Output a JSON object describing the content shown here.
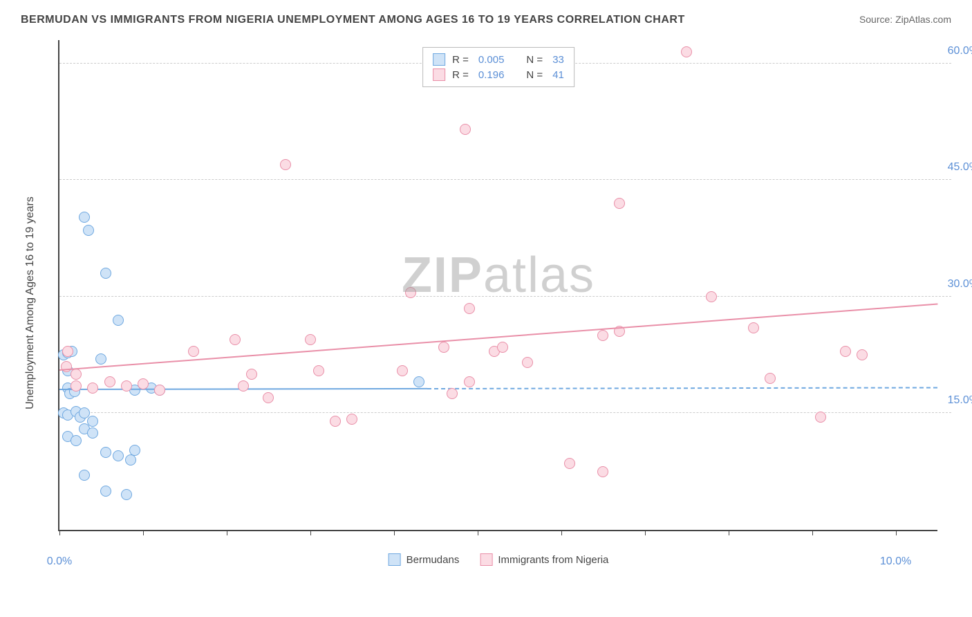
{
  "title": "BERMUDAN VS IMMIGRANTS FROM NIGERIA UNEMPLOYMENT AMONG AGES 16 TO 19 YEARS CORRELATION CHART",
  "source": "Source: ZipAtlas.com",
  "watermark_a": "ZIP",
  "watermark_b": "atlas",
  "yaxis_title": "Unemployment Among Ages 16 to 19 years",
  "chart": {
    "type": "scatter",
    "xlim": [
      0,
      10.5
    ],
    "ylim": [
      0,
      63
    ],
    "xticks": [
      0,
      1,
      2,
      3,
      4,
      5,
      6,
      7,
      8,
      9,
      10
    ],
    "xtick_labels": {
      "0": "0.0%",
      "10": "10.0%"
    },
    "yticks": [
      15,
      30,
      45,
      60
    ],
    "ytick_labels": {
      "15": "15.0%",
      "30": "30.0%",
      "45": "45.0%",
      "60": "60.0%"
    },
    "background_color": "#ffffff",
    "grid_color": "#cccccc",
    "axis_color": "#444444",
    "tick_label_color": "#5b8fd6",
    "marker_radius": 8,
    "marker_stroke_width": 1.5,
    "trend_line_width": 2
  },
  "series": [
    {
      "name": "Bermudans",
      "fill": "#cfe3f7",
      "stroke": "#6fa8e0",
      "R_label": "R =",
      "R": "0.005",
      "N_label": "N =",
      "N": "33",
      "trend": {
        "x1": 0,
        "y1": 18.0,
        "x2": 4.4,
        "y2": 18.1,
        "solid_until_x": 4.4,
        "dashed_to_x": 10.5
      },
      "points": [
        [
          0.05,
          22.5
        ],
        [
          0.1,
          22.8
        ],
        [
          0.15,
          23.0
        ],
        [
          0.1,
          18.2
        ],
        [
          0.12,
          17.5
        ],
        [
          0.18,
          17.8
        ],
        [
          0.1,
          20.5
        ],
        [
          0.3,
          40.2
        ],
        [
          0.35,
          38.5
        ],
        [
          0.55,
          33.0
        ],
        [
          0.7,
          27.0
        ],
        [
          0.05,
          15.0
        ],
        [
          0.1,
          14.8
        ],
        [
          0.2,
          15.2
        ],
        [
          0.25,
          14.5
        ],
        [
          0.3,
          15.0
        ],
        [
          0.4,
          14.0
        ],
        [
          0.1,
          12.0
        ],
        [
          0.2,
          11.5
        ],
        [
          0.3,
          13.0
        ],
        [
          0.4,
          12.5
        ],
        [
          0.55,
          10.0
        ],
        [
          0.7,
          9.5
        ],
        [
          0.85,
          9.0
        ],
        [
          0.9,
          10.2
        ],
        [
          0.3,
          7.0
        ],
        [
          0.55,
          5.0
        ],
        [
          0.8,
          4.5
        ],
        [
          0.9,
          18.0
        ],
        [
          1.1,
          18.2
        ],
        [
          1.2,
          18.0
        ],
        [
          4.3,
          19.0
        ],
        [
          0.5,
          22.0
        ]
      ]
    },
    {
      "name": "Immigrants from Nigeria",
      "fill": "#fbdce4",
      "stroke": "#e98fa8",
      "R_label": "R =",
      "R": "0.196",
      "N_label": "N =",
      "N": "41",
      "trend": {
        "x1": 0,
        "y1": 20.5,
        "x2": 10.5,
        "y2": 29.0
      },
      "points": [
        [
          0.08,
          21.0
        ],
        [
          0.2,
          20.0
        ],
        [
          0.2,
          18.5
        ],
        [
          0.4,
          18.2
        ],
        [
          0.6,
          19.0
        ],
        [
          0.8,
          18.5
        ],
        [
          1.0,
          18.8
        ],
        [
          1.2,
          18.0
        ],
        [
          1.6,
          23.0
        ],
        [
          2.1,
          24.5
        ],
        [
          2.2,
          18.5
        ],
        [
          2.3,
          20.0
        ],
        [
          2.5,
          17.0
        ],
        [
          2.7,
          47.0
        ],
        [
          3.0,
          24.5
        ],
        [
          3.1,
          20.5
        ],
        [
          3.3,
          14.0
        ],
        [
          3.5,
          14.2
        ],
        [
          4.1,
          20.5
        ],
        [
          4.2,
          30.5
        ],
        [
          4.7,
          17.5
        ],
        [
          4.85,
          51.5
        ],
        [
          4.9,
          28.5
        ],
        [
          4.9,
          19.0
        ],
        [
          5.2,
          23.0
        ],
        [
          5.3,
          23.5
        ],
        [
          5.6,
          21.5
        ],
        [
          6.1,
          8.5
        ],
        [
          6.5,
          7.5
        ],
        [
          6.7,
          42.0
        ],
        [
          6.7,
          25.5
        ],
        [
          7.5,
          61.5
        ],
        [
          7.8,
          30.0
        ],
        [
          8.3,
          26.0
        ],
        [
          8.5,
          19.5
        ],
        [
          9.1,
          14.5
        ],
        [
          9.4,
          23.0
        ],
        [
          9.6,
          22.5
        ],
        [
          6.5,
          25.0
        ],
        [
          0.1,
          23.0
        ],
        [
          4.6,
          23.5
        ]
      ]
    }
  ],
  "legend_bottom": [
    {
      "label": "Bermudans",
      "fill": "#cfe3f7",
      "stroke": "#6fa8e0"
    },
    {
      "label": "Immigrants from Nigeria",
      "fill": "#fbdce4",
      "stroke": "#e98fa8"
    }
  ]
}
